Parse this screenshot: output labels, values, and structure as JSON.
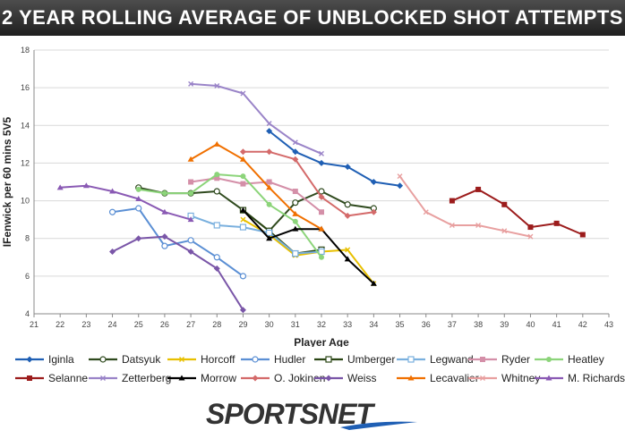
{
  "header": {
    "title": "2 YEAR ROLLING AVERAGE OF UNBLOCKED SHOT ATTEMPTS"
  },
  "logo": {
    "text": "SPORTSNET"
  },
  "chart_data": {
    "type": "line",
    "title": "2 YEAR ROLLING AVERAGE OF UNBLOCKED SHOT ATTEMPTS",
    "xlabel": "Player Age",
    "ylabel": "IFenwick per 60 mins 5V5",
    "xlim": [
      21,
      43
    ],
    "ylim": [
      4,
      18
    ],
    "xticks": [
      21,
      22,
      23,
      24,
      25,
      26,
      27,
      28,
      29,
      30,
      31,
      32,
      33,
      34,
      35,
      36,
      37,
      38,
      39,
      40,
      41,
      42,
      43
    ],
    "yticks": [
      4,
      6,
      8,
      10,
      12,
      14,
      16,
      18
    ],
    "grid": "horizontal",
    "legend_position": "bottom",
    "series": [
      {
        "name": "Iginla",
        "color": "#1f5fb4",
        "marker": "diamond",
        "x": [
          30,
          31,
          32,
          33,
          34,
          35
        ],
        "y": [
          13.7,
          12.6,
          12.0,
          11.8,
          11.0,
          10.8
        ]
      },
      {
        "name": "Datsyuk",
        "color": "#2f4a1e",
        "marker": "circle-open",
        "x": [
          25,
          26,
          27,
          28,
          29,
          30,
          31,
          32,
          33,
          34
        ],
        "y": [
          10.7,
          10.4,
          10.4,
          10.5,
          9.5,
          8.4,
          9.9,
          10.5,
          9.8,
          9.6
        ]
      },
      {
        "name": "Horcoff",
        "color": "#e8c000",
        "marker": "x",
        "x": [
          29,
          30,
          31,
          32,
          33,
          34
        ],
        "y": [
          9.0,
          8.2,
          7.1,
          7.3,
          7.4,
          5.6
        ]
      },
      {
        "name": "Hudler",
        "color": "#5b8fd4",
        "marker": "circle-open",
        "x": [
          24,
          25,
          26,
          27,
          28,
          29
        ],
        "y": [
          9.4,
          9.6,
          7.6,
          7.9,
          7.0,
          6.0
        ]
      },
      {
        "name": "Umberger",
        "color": "#2a4514",
        "marker": "square-open",
        "x": [
          29,
          30,
          31,
          32
        ],
        "y": [
          9.5,
          8.4,
          7.2,
          7.4
        ]
      },
      {
        "name": "Legwand",
        "color": "#7ab0de",
        "marker": "square-open",
        "x": [
          27,
          28,
          29,
          30,
          31,
          32
        ],
        "y": [
          9.2,
          8.7,
          8.6,
          8.3,
          7.2,
          7.3
        ]
      },
      {
        "name": "Ryder",
        "color": "#d48fa8",
        "marker": "square",
        "x": [
          27,
          28,
          29,
          30,
          31,
          32
        ],
        "y": [
          11.0,
          11.2,
          10.9,
          11.0,
          10.5,
          9.4
        ]
      },
      {
        "name": "Heatley",
        "color": "#8cd47a",
        "marker": "circle",
        "x": [
          25,
          26,
          27,
          28,
          29,
          30,
          31,
          32
        ],
        "y": [
          10.6,
          10.4,
          10.4,
          11.4,
          11.3,
          9.8,
          8.9,
          7.0
        ]
      },
      {
        "name": "Selanne",
        "color": "#9c1c1c",
        "marker": "square",
        "x": [
          37,
          38,
          39,
          40,
          41,
          42
        ],
        "y": [
          10.0,
          10.6,
          9.8,
          8.6,
          8.8,
          8.2
        ]
      },
      {
        "name": "Zetterberg",
        "color": "#9a84c8",
        "marker": "x",
        "x": [
          27,
          28,
          29,
          30,
          31,
          32
        ],
        "y": [
          16.2,
          16.1,
          15.7,
          14.1,
          13.1,
          12.5
        ]
      },
      {
        "name": "Morrow",
        "color": "#000000",
        "marker": "triangle",
        "x": [
          29,
          30,
          31,
          32,
          33,
          34
        ],
        "y": [
          9.5,
          8.0,
          8.5,
          8.5,
          6.9,
          5.6
        ]
      },
      {
        "name": "O. Jokinen",
        "color": "#d46a6a",
        "marker": "diamond",
        "x": [
          29,
          30,
          31,
          32,
          33,
          34
        ],
        "y": [
          12.6,
          12.6,
          12.2,
          10.2,
          9.2,
          9.4
        ]
      },
      {
        "name": "Weiss",
        "color": "#7a56a8",
        "marker": "diamond",
        "x": [
          24,
          25,
          26,
          27,
          28,
          29
        ],
        "y": [
          7.3,
          8.0,
          8.1,
          7.3,
          6.4,
          4.2
        ]
      },
      {
        "name": "Lecavalier",
        "color": "#f07000",
        "marker": "triangle",
        "x": [
          27,
          28,
          29,
          30,
          31,
          32
        ],
        "y": [
          12.2,
          13.0,
          12.2,
          10.7,
          9.3,
          8.5
        ]
      },
      {
        "name": "Whitney",
        "color": "#e8a0a0",
        "marker": "x",
        "x": [
          35,
          36,
          37,
          38,
          39,
          40
        ],
        "y": [
          11.3,
          9.4,
          8.7,
          8.7,
          8.4,
          8.1
        ]
      },
      {
        "name": "M. Richards",
        "color": "#8a5ab4",
        "marker": "triangle",
        "x": [
          22,
          23,
          24,
          25,
          26,
          27
        ],
        "y": [
          10.7,
          10.8,
          10.5,
          10.1,
          9.4,
          9.0
        ]
      }
    ]
  }
}
